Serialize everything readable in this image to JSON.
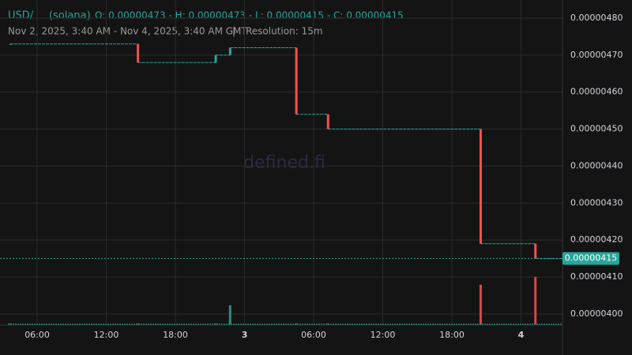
{
  "chart_data": {
    "type": "candlestick",
    "pair": "USD/",
    "chain": "(solana)",
    "ohlc": "O: 0.00000473 - H: 0.00000473 - L: 0.00000415 - C: 0.00000415",
    "range": "Nov 2, 2025, 3:40 AM - Nov 4, 2025, 3:40 AM GMT",
    "separator": "|",
    "resolution": "Resolution: 15m",
    "watermark": "defined.fi",
    "up_color": "#26a69a",
    "down_color": "#ef5350",
    "x": [
      3.67,
      14.75,
      21.5,
      22.75,
      28.5,
      31.25,
      44.5,
      49.25
    ],
    "open": [
      4.73e-06,
      4.73e-06,
      4.68e-06,
      4.7e-06,
      4.72e-06,
      4.54e-06,
      4.5e-06,
      4.19e-06
    ],
    "close": [
      4.73e-06,
      4.68e-06,
      4.7e-06,
      4.72e-06,
      4.54e-06,
      4.5e-06,
      4.19e-06,
      4.15e-06
    ],
    "volume": [
      1,
      1,
      1,
      24,
      1,
      1,
      50,
      60
    ],
    "volume_lim": [
      0,
      100
    ],
    "last_price": {
      "value": 4.15e-06,
      "label": "0.00000415"
    },
    "xlim": [
      3.46,
      51.6
    ],
    "ylim": [
      3.97e-06,
      4.832e-06
    ],
    "xticks": [
      {
        "value": 6,
        "label": "06:00"
      },
      {
        "value": 12,
        "label": "12:00"
      },
      {
        "value": 18,
        "label": "18:00"
      },
      {
        "value": 24,
        "label": "3"
      },
      {
        "value": 30,
        "label": "06:00"
      },
      {
        "value": 36,
        "label": "12:00"
      },
      {
        "value": 42,
        "label": "18:00"
      },
      {
        "value": 48,
        "label": "4"
      }
    ],
    "yticks": [
      {
        "value": 4e-06,
        "label": "0.00000400"
      },
      {
        "value": 4.1e-06,
        "label": "0.00000410"
      },
      {
        "value": 4.2e-06,
        "label": "0.00000420"
      },
      {
        "value": 4.3e-06,
        "label": "0.00000430"
      },
      {
        "value": 4.4e-06,
        "label": "0.00000440"
      },
      {
        "value": 4.5e-06,
        "label": "0.00000450"
      },
      {
        "value": 4.6e-06,
        "label": "0.00000460"
      },
      {
        "value": 4.7e-06,
        "label": "0.00000470"
      },
      {
        "value": 4.8e-06,
        "label": "0.00000480"
      }
    ],
    "grid": true
  }
}
